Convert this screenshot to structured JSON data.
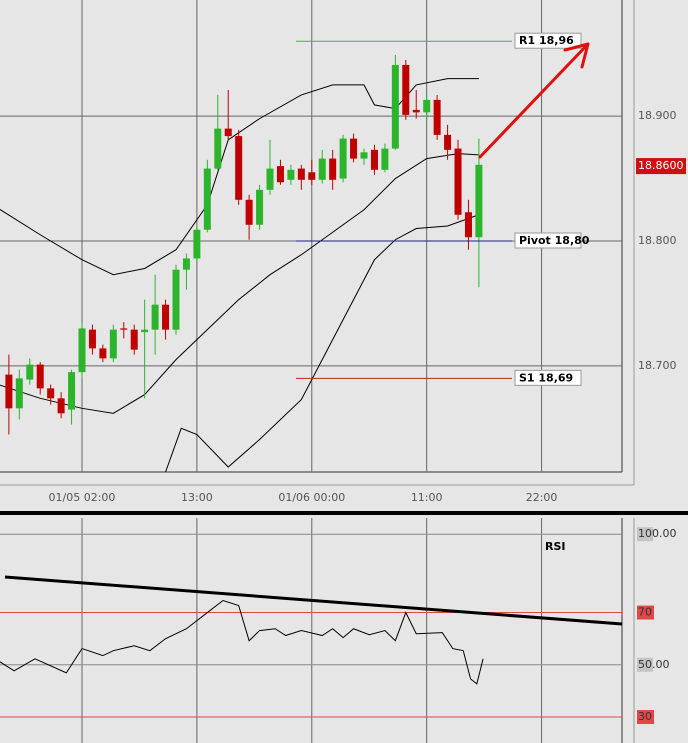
{
  "chart_data": [
    {
      "type": "candlestick",
      "xlim": [
        -7.85,
        51.7
      ],
      "xticks": [
        {
          "value": 0,
          "label": "01/05 02:00"
        },
        {
          "value": 11,
          "label": "13:00"
        },
        {
          "value": 22,
          "label": "01/06 00:00"
        },
        {
          "value": 33,
          "label": "11:00"
        },
        {
          "value": 44,
          "label": "22:00"
        }
      ],
      "ylim": [
        18.615,
        18.993
      ],
      "yticks": [
        {
          "value": 18.7,
          "label": "18.700"
        },
        {
          "value": 18.8,
          "label": "18.800"
        },
        {
          "value": 18.9,
          "label": "18.900"
        }
      ],
      "grid": true,
      "up_color": "#2db42d",
      "down_color": "#c00000",
      "x": [
        -7,
        -6,
        -5,
        -4,
        -3,
        -2,
        -1,
        0,
        1,
        2,
        3,
        4,
        5,
        6,
        7,
        8,
        9,
        10,
        11,
        12,
        13,
        14,
        15,
        16,
        17,
        18,
        19,
        20,
        21,
        22,
        23,
        24,
        25,
        26,
        27,
        28,
        29,
        30,
        31,
        32,
        33,
        34,
        35,
        36,
        37,
        38
      ],
      "open": [
        18.693,
        18.666,
        18.689,
        18.701,
        18.682,
        18.674,
        18.665,
        18.695,
        18.729,
        18.714,
        18.706,
        18.73,
        18.729,
        18.727,
        18.729,
        18.749,
        18.729,
        18.777,
        18.786,
        18.809,
        18.858,
        18.89,
        18.884,
        18.833,
        18.813,
        18.841,
        18.86,
        18.849,
        18.858,
        18.855,
        18.849,
        18.866,
        18.85,
        18.882,
        18.866,
        18.873,
        18.857,
        18.874,
        18.941,
        18.905,
        18.903,
        18.913,
        18.885,
        18.874,
        18.823,
        18.803
      ],
      "high": [
        18.709,
        18.697,
        18.706,
        18.703,
        18.685,
        18.679,
        18.697,
        18.735,
        18.733,
        18.717,
        18.733,
        18.735,
        18.733,
        18.753,
        18.773,
        18.753,
        18.781,
        18.79,
        18.813,
        18.865,
        18.917,
        18.921,
        18.889,
        18.837,
        18.845,
        18.881,
        18.865,
        18.861,
        18.861,
        18.865,
        18.873,
        18.873,
        18.885,
        18.886,
        18.874,
        18.877,
        18.878,
        18.949,
        18.945,
        18.921,
        18.917,
        18.917,
        18.893,
        18.881,
        18.833,
        18.882
      ],
      "low": [
        18.645,
        18.657,
        18.685,
        18.677,
        18.669,
        18.658,
        18.653,
        18.69,
        18.709,
        18.703,
        18.703,
        18.722,
        18.709,
        18.674,
        18.709,
        18.721,
        18.725,
        18.761,
        18.783,
        18.807,
        18.857,
        18.881,
        18.829,
        18.801,
        18.809,
        18.837,
        18.845,
        18.845,
        18.841,
        18.845,
        18.846,
        18.841,
        18.847,
        18.863,
        18.861,
        18.853,
        18.855,
        18.873,
        18.897,
        18.898,
        18.897,
        18.881,
        18.865,
        18.817,
        18.793,
        18.763
      ],
      "close": [
        18.666,
        18.69,
        18.701,
        18.682,
        18.674,
        18.662,
        18.695,
        18.73,
        18.714,
        18.706,
        18.729,
        18.729,
        18.713,
        18.729,
        18.749,
        18.729,
        18.777,
        18.786,
        18.809,
        18.858,
        18.89,
        18.884,
        18.833,
        18.813,
        18.841,
        18.858,
        18.847,
        18.857,
        18.849,
        18.849,
        18.866,
        18.849,
        18.882,
        18.866,
        18.871,
        18.857,
        18.874,
        18.941,
        18.901,
        18.903,
        18.913,
        18.885,
        18.873,
        18.821,
        18.803,
        18.861
      ],
      "series": [
        {
          "color": "#000000",
          "x": [
            -8,
            -4,
            0,
            3,
            6,
            9,
            12,
            14,
            17,
            21,
            24,
            27,
            28,
            30,
            32,
            35,
            38
          ],
          "values": [
            18.826,
            18.805,
            18.785,
            18.773,
            18.778,
            18.793,
            18.829,
            18.881,
            18.898,
            18.917,
            18.925,
            18.925,
            18.909,
            18.906,
            18.925,
            18.93,
            18.93
          ]
        },
        {
          "color": "#000000",
          "x": [
            -8,
            -4,
            0,
            3,
            6,
            9,
            12,
            15,
            18,
            21,
            24,
            27,
            30,
            33,
            36,
            38
          ],
          "values": [
            18.685,
            18.674,
            18.666,
            18.662,
            18.677,
            18.705,
            18.729,
            18.753,
            18.773,
            18.789,
            18.807,
            18.825,
            18.85,
            18.866,
            18.87,
            18.869
          ]
        },
        {
          "color": "#000000",
          "x": [
            8,
            9.5,
            11,
            14,
            17,
            21,
            24,
            28,
            30,
            32,
            35,
            38
          ],
          "values": [
            18.615,
            18.65,
            18.645,
            18.619,
            18.641,
            18.673,
            18.721,
            18.785,
            18.801,
            18.81,
            18.812,
            18.821
          ]
        }
      ],
      "levels": [
        {
          "label": "R1 18,96",
          "value": 18.96,
          "color": "#33bb33"
        },
        {
          "label": "Pivot 18,80",
          "value": 18.8,
          "color": "#1a1aa0"
        },
        {
          "label": "S1 18,69",
          "value": 18.69,
          "color": "#cc1a1a"
        }
      ],
      "last_price": {
        "value": 18.86,
        "label": "18.8600",
        "color": "#d01010"
      }
    },
    {
      "type": "line",
      "title": "RSI",
      "xlim": [
        -7.85,
        51.7
      ],
      "xticks": [
        0,
        11,
        22,
        33,
        44
      ],
      "ylim": [
        21.2,
        106.2
      ],
      "yticks": [
        {
          "value": 100,
          "label": "100.00"
        },
        70,
        {
          "value": 50,
          "label": "50.00"
        },
        30
      ],
      "levels": [
        70,
        30
      ],
      "level_color": "#e04848",
      "color": "#000000",
      "x": [
        -8,
        -6.5,
        -4.5,
        -1.5,
        0,
        2,
        3,
        5,
        6.5,
        8,
        10,
        12,
        13.5,
        15,
        16,
        17,
        18.5,
        19.5,
        21,
        23,
        24,
        25,
        26,
        27.5,
        29,
        30,
        31,
        32,
        34.5,
        35.5,
        36.5,
        37.2,
        37.8,
        38.4
      ],
      "values": [
        51.5,
        47.7,
        52.3,
        46.9,
        56.2,
        53.5,
        55.4,
        57.3,
        55.4,
        60,
        63.8,
        70,
        74.6,
        72.7,
        59.2,
        63.1,
        63.8,
        61.2,
        63.1,
        61.2,
        63.8,
        60.4,
        63.8,
        61.5,
        63.1,
        59.2,
        70,
        61.9,
        62.3,
        56.2,
        55.4,
        44.6,
        42.7,
        52.3
      ]
    }
  ]
}
